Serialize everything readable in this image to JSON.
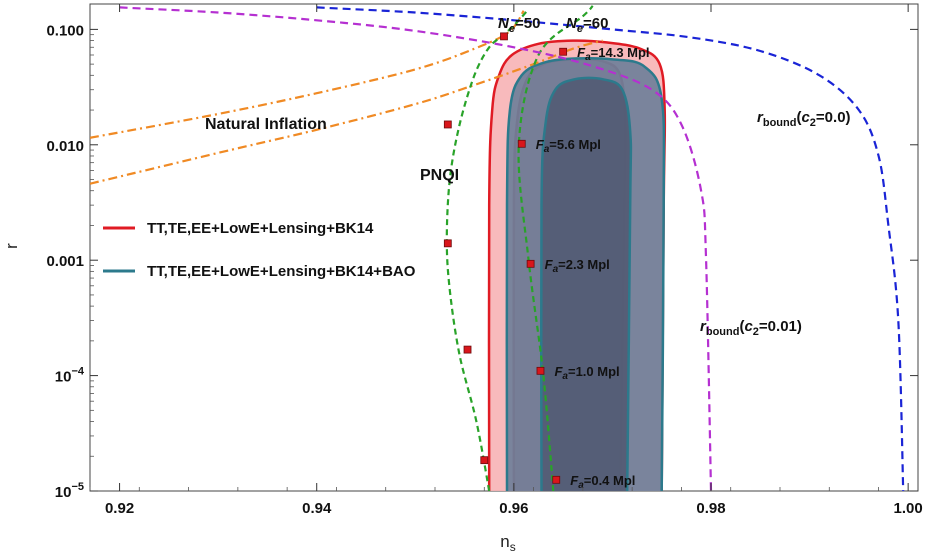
{
  "chart_data": {
    "type": "line",
    "title": "",
    "xlabel": "n",
    "xlabel_sub": "s",
    "ylabel": "r",
    "xlim": [
      0.917,
      1.001
    ],
    "ylim_log10": [
      -5,
      -0.78
    ],
    "yscale": "log",
    "grid": false,
    "legend_placement": "left-middle",
    "xticks": [
      {
        "v": 0.92,
        "label": "0.92"
      },
      {
        "v": 0.94,
        "label": "0.94"
      },
      {
        "v": 0.96,
        "label": "0.96"
      },
      {
        "v": 0.98,
        "label": "0.98"
      },
      {
        "v": 1.0,
        "label": "1.00"
      }
    ],
    "yticks": [
      {
        "v": 0.1,
        "label": "0.100"
      },
      {
        "v": 0.01,
        "label": "0.010"
      },
      {
        "v": 0.001,
        "label": "0.001"
      },
      {
        "v": 0.0001,
        "label": "10",
        "sup": "−4"
      },
      {
        "v": 1e-05,
        "label": "10",
        "sup": "−5"
      }
    ],
    "contours": [
      {
        "dataset": "TT,TE,EE+LowE+Lensing+BK14",
        "level": "95%",
        "fill": "#f7b4b6",
        "stroke": "#e01b24",
        "path": [
          [
            0.9575,
            1e-05
          ],
          [
            0.9575,
            0.003
          ],
          [
            0.9578,
            0.02
          ],
          [
            0.9585,
            0.04
          ],
          [
            0.9598,
            0.06
          ],
          [
            0.9625,
            0.075
          ],
          [
            0.966,
            0.08
          ],
          [
            0.9695,
            0.077
          ],
          [
            0.9728,
            0.068
          ],
          [
            0.9748,
            0.05
          ],
          [
            0.9753,
            0.02
          ],
          [
            0.9752,
            0.003
          ],
          [
            0.975,
            1e-05
          ]
        ]
      },
      {
        "dataset": "TT,TE,EE+LowE+Lensing+BK14",
        "level": "68%",
        "fill": "#c26f7f",
        "stroke": "#b02538",
        "path": [
          [
            0.96,
            1e-05
          ],
          [
            0.96,
            0.003
          ],
          [
            0.9603,
            0.015
          ],
          [
            0.9612,
            0.035
          ],
          [
            0.963,
            0.05
          ],
          [
            0.966,
            0.055
          ],
          [
            0.969,
            0.053
          ],
          [
            0.9708,
            0.04
          ],
          [
            0.9713,
            0.015
          ],
          [
            0.9712,
            0.003
          ],
          [
            0.9708,
            1e-05
          ]
        ]
      },
      {
        "dataset": "TT,TE,EE+LowE+Lensing+BK14+BAO",
        "level": "95%",
        "fill": "#6f7f99",
        "stroke": "#2c7a8c",
        "path": [
          [
            0.9593,
            1e-05
          ],
          [
            0.9593,
            0.003
          ],
          [
            0.9596,
            0.02
          ],
          [
            0.9608,
            0.04
          ],
          [
            0.9632,
            0.052
          ],
          [
            0.9665,
            0.056
          ],
          [
            0.97,
            0.055
          ],
          [
            0.9732,
            0.048
          ],
          [
            0.975,
            0.025
          ],
          [
            0.9752,
            0.003
          ],
          [
            0.975,
            1e-05
          ]
        ]
      },
      {
        "dataset": "TT,TE,EE+LowE+Lensing+BK14+BAO",
        "level": "68%",
        "fill": "#525b74",
        "stroke": "#2c7a8c",
        "path": [
          [
            0.9628,
            1e-05
          ],
          [
            0.9628,
            0.003
          ],
          [
            0.9632,
            0.015
          ],
          [
            0.9642,
            0.03
          ],
          [
            0.9662,
            0.037
          ],
          [
            0.969,
            0.037
          ],
          [
            0.971,
            0.03
          ],
          [
            0.9718,
            0.013
          ],
          [
            0.9718,
            0.003
          ],
          [
            0.9715,
            1e-05
          ]
        ]
      }
    ],
    "series": [
      {
        "kind": "natural-inflation",
        "color": "#f08a24",
        "dash": "9,4,2,4",
        "points": [
          [
            0.917,
            0.0115
          ],
          [
            0.93,
            0.0185
          ],
          [
            0.94,
            0.028
          ],
          [
            0.95,
            0.045
          ],
          [
            0.956,
            0.068
          ],
          [
            0.9595,
            0.095
          ],
          [
            0.961,
            0.145
          ]
        ]
      },
      {
        "kind": "natural-inflation",
        "color": "#f08a24",
        "dash": "9,4,2,4",
        "points": [
          [
            0.917,
            0.0046
          ],
          [
            0.93,
            0.0085
          ],
          [
            0.94,
            0.0135
          ],
          [
            0.95,
            0.0225
          ],
          [
            0.956,
            0.033
          ],
          [
            0.962,
            0.05
          ],
          [
            0.966,
            0.068
          ],
          [
            0.969,
            0.08
          ]
        ]
      },
      {
        "kind": "PNQI",
        "color": "#29a329",
        "dash": "6,4",
        "points": [
          [
            0.9575,
            1e-05
          ],
          [
            0.9562,
            4e-05
          ],
          [
            0.9545,
            0.00015
          ],
          [
            0.9535,
            0.00055
          ],
          [
            0.9532,
            0.0015
          ],
          [
            0.9535,
            0.005
          ],
          [
            0.9545,
            0.015
          ],
          [
            0.956,
            0.04
          ],
          [
            0.9575,
            0.07
          ],
          [
            0.959,
            0.09
          ],
          [
            0.9605,
            0.12
          ],
          [
            0.9615,
            0.15
          ]
        ]
      },
      {
        "kind": "PNQI",
        "color": "#29a329",
        "dash": "6,4",
        "points": [
          [
            0.964,
            1e-05
          ],
          [
            0.963,
            0.0001
          ],
          [
            0.9615,
            0.001
          ],
          [
            0.9605,
            0.01
          ],
          [
            0.9625,
            0.06
          ],
          [
            0.967,
            0.13
          ],
          [
            0.968,
            0.16
          ]
        ]
      },
      {
        "kind": "r_bound",
        "color": "#b530d1",
        "dash": "8,5",
        "points": [
          [
            0.92,
            0.155
          ],
          [
            0.93,
            0.14
          ],
          [
            0.94,
            0.12
          ],
          [
            0.95,
            0.097
          ],
          [
            0.96,
            0.07
          ],
          [
            0.968,
            0.048
          ],
          [
            0.974,
            0.03
          ],
          [
            0.977,
            0.015
          ],
          [
            0.979,
            0.004
          ],
          [
            0.9795,
            0.001
          ],
          [
            0.98,
            1e-05
          ]
        ]
      },
      {
        "kind": "r_bound",
        "color": "#1a24d6",
        "dash": "8,5",
        "points": [
          [
            0.94,
            0.155
          ],
          [
            0.95,
            0.14
          ],
          [
            0.96,
            0.12
          ],
          [
            0.97,
            0.1
          ],
          [
            0.978,
            0.085
          ],
          [
            0.985,
            0.065
          ],
          [
            0.991,
            0.04
          ],
          [
            0.995,
            0.02
          ],
          [
            0.997,
            0.008
          ],
          [
            0.998,
            0.002
          ],
          [
            0.999,
            0.0003
          ],
          [
            0.9995,
            1e-05
          ]
        ]
      }
    ],
    "markers": [
      {
        "x": 0.959,
        "y": 0.087,
        "label": ""
      },
      {
        "x": 0.9533,
        "y": 0.015,
        "label": ""
      },
      {
        "x": 0.9533,
        "y": 0.0014,
        "label": ""
      },
      {
        "x": 0.9553,
        "y": 0.000168,
        "label": ""
      },
      {
        "x": 0.957,
        "y": 1.85e-05,
        "label": ""
      },
      {
        "x": 0.965,
        "y": 0.064,
        "label": "14.3"
      },
      {
        "x": 0.9608,
        "y": 0.0102,
        "label": "5.6"
      },
      {
        "x": 0.9617,
        "y": 0.00093,
        "label": "2.3"
      },
      {
        "x": 0.9627,
        "y": 0.00011,
        "label": "1.0"
      },
      {
        "x": 0.9643,
        "y": 1.25e-05,
        "label": "0.4"
      }
    ],
    "marker_color": "#d9161b",
    "annotations": {
      "natural_inflation": "Natural Inflation",
      "pnqi": "PNQI",
      "ne_prefix": "N",
      "ne_sub": "e",
      "ne50": "=50",
      "ne60": "=60",
      "fa_prefix": "F",
      "fa_sub": "a",
      "fa_unit": " Mpl",
      "rbound_prefix": "r",
      "rbound_sub": "bound",
      "c2_open": "(",
      "c2_var": "c",
      "c2_sub": "2",
      "c2_val_blue": "=0.0)",
      "c2_val_purple": "=0.01)"
    },
    "legend": [
      {
        "label": "TT,TE,EE+LowE+Lensing+BK14",
        "color": "#e01b24"
      },
      {
        "label": "TT,TE,EE+LowE+Lensing+BK14+BAO",
        "color": "#2c7a8c"
      }
    ]
  }
}
